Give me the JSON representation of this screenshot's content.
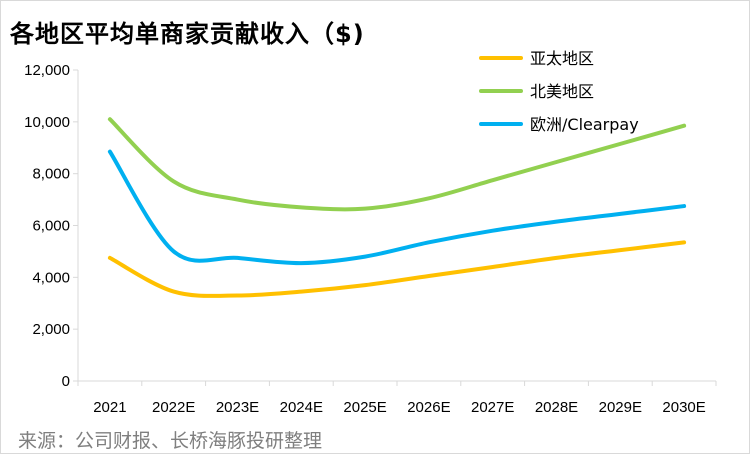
{
  "chart_data": {
    "type": "line",
    "title": "各地区平均单商家贡献收入（$)",
    "source": "来源：公司财报、长桥海豚投研整理",
    "categories": [
      "2021",
      "2022E",
      "2023E",
      "2024E",
      "2025E",
      "2026E",
      "2027E",
      "2028E",
      "2029E",
      "2030E"
    ],
    "ylim": [
      0,
      12000
    ],
    "yticks": [
      "0",
      "2,000",
      "4,000",
      "6,000",
      "8,000",
      "10,000",
      "12,000"
    ],
    "xlabel": "",
    "ylabel": "",
    "grid": false,
    "legend_position": "top-right",
    "series": [
      {
        "name": "亚太地区",
        "color": "#FFC000",
        "values": [
          4750,
          3450,
          3300,
          3450,
          3700,
          4050,
          4400,
          4750,
          5050,
          5350
        ]
      },
      {
        "name": "北美地区",
        "color": "#92D050",
        "values": [
          10100,
          7700,
          7000,
          6700,
          6650,
          7050,
          7750,
          8450,
          9150,
          9850
        ]
      },
      {
        "name": "欧洲/Clearpay",
        "color": "#00B0F0",
        "values": [
          8850,
          5000,
          4750,
          4550,
          4800,
          5350,
          5800,
          6150,
          6450,
          6750
        ]
      }
    ]
  }
}
